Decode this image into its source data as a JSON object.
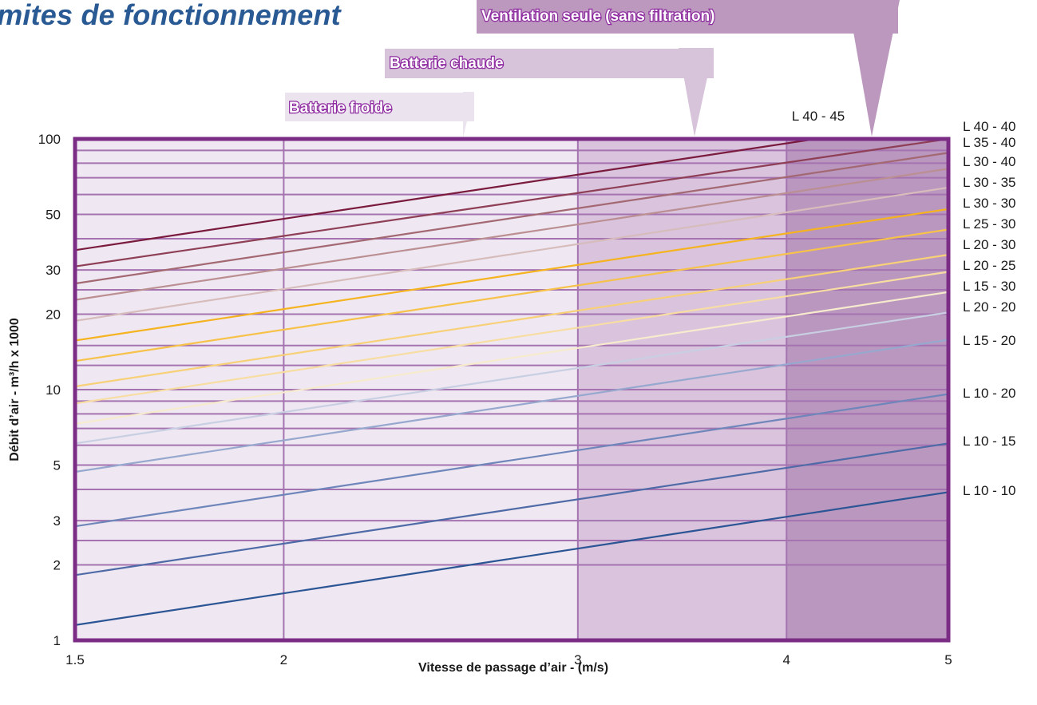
{
  "title": "imites de fonctionnement",
  "chart_data": {
    "type": "line",
    "xlabel": "Vitesse de passage d’air  -  (m/s)",
    "ylabel": "Débit d’air  -  m³/h x 1000",
    "x_scale": "log",
    "y_scale": "log",
    "xlim": [
      1.5,
      5
    ],
    "ylim": [
      1,
      100
    ],
    "x_ticks": [
      1.5,
      2,
      3,
      4,
      5
    ],
    "x_tick_labels": [
      "1.5",
      "2",
      "3",
      "4",
      "5"
    ],
    "y_ticks": [
      1,
      2,
      3,
      5,
      10,
      20,
      30,
      50,
      100
    ],
    "y_tick_labels": [
      "1",
      "2",
      "3",
      "5",
      "10",
      "20",
      "30",
      "50",
      "100"
    ],
    "y_gridlines": [
      1,
      2,
      2.5,
      3,
      4,
      5,
      6,
      7,
      8,
      9,
      10,
      12.5,
      15,
      20,
      25,
      30,
      40,
      50,
      60,
      70,
      80,
      90,
      100
    ],
    "zones": [
      {
        "label": "Batterie froide",
        "x_from": 1.5,
        "x_to": 3,
        "color": "#efe8f2"
      },
      {
        "label": "Batterie chaude",
        "x_from": 3,
        "x_to": 4,
        "color": "#d9c3dd"
      },
      {
        "label": "Ventilation seule (sans filtration)",
        "x_from": 4,
        "x_to": 5,
        "color": "#ba97bf"
      }
    ],
    "zone_label_colors": [
      "#ebe3ee",
      "#d7c3da",
      "#bc98be"
    ],
    "top_annotation": "L 40 - 45",
    "series": [
      {
        "name": "L 40 - 40",
        "x": [
          1.5,
          5
        ],
        "y": [
          36,
          120
        ],
        "color": "#7a1a3d"
      },
      {
        "name": "L 35 - 40",
        "x": [
          1.5,
          5
        ],
        "y": [
          31,
          100
        ],
        "color": "#8e3e55"
      },
      {
        "name": "L 30 - 40",
        "x": [
          1.5,
          5
        ],
        "y": [
          26.5,
          88
        ],
        "color": "#a36872"
      },
      {
        "name": "L 30 - 35",
        "x": [
          1.5,
          5
        ],
        "y": [
          22.8,
          76
        ],
        "color": "#bb8f92"
      },
      {
        "name": "L 30 - 30",
        "x": [
          1.5,
          5
        ],
        "y": [
          18.8,
          64
        ],
        "color": "#d7bcbc"
      },
      {
        "name": "L 25 - 30",
        "x": [
          1.5,
          5
        ],
        "y": [
          15.7,
          52.5
        ],
        "color": "#f5b320"
      },
      {
        "name": "L 20 - 30",
        "x": [
          1.5,
          5
        ],
        "y": [
          13,
          43.5
        ],
        "color": "#f7c24a"
      },
      {
        "name": "L 20 - 25",
        "x": [
          1.5,
          5
        ],
        "y": [
          10.3,
          34.5
        ],
        "color": "#f7d077"
      },
      {
        "name": "L 15 - 30",
        "x": [
          1.5,
          5
        ],
        "y": [
          8.8,
          29.5
        ],
        "color": "#f8dda2"
      },
      {
        "name": "L 20 - 20",
        "x": [
          1.5,
          5
        ],
        "y": [
          7.3,
          24.5
        ],
        "color": "#f7ebce"
      },
      {
        "name": "L 15 - 20",
        "x": [
          1.5,
          5
        ],
        "y": [
          6.1,
          20.3
        ],
        "color": "#c9cfe3"
      },
      {
        "name": "L 10 - 20",
        "x": [
          1.5,
          5
        ],
        "y": [
          4.7,
          15.8
        ],
        "color": "#97a8cf"
      },
      {
        "name": "L 10 - 15",
        "x": [
          1.5,
          5
        ],
        "y": [
          2.85,
          9.6
        ],
        "color": "#6f86bb"
      },
      {
        "name": "L 10 - 10",
        "x": [
          1.5,
          5
        ],
        "y": [
          1.82,
          6.1
        ],
        "color": "#4e6aa7"
      },
      {
        "name": "",
        "x": [
          1.5,
          5
        ],
        "y": [
          1.15,
          3.9
        ],
        "color": "#2b5594"
      }
    ],
    "colors": {
      "frame": "#7b2d86",
      "gridline": "#a473b0",
      "title": "#2a5a94"
    }
  }
}
